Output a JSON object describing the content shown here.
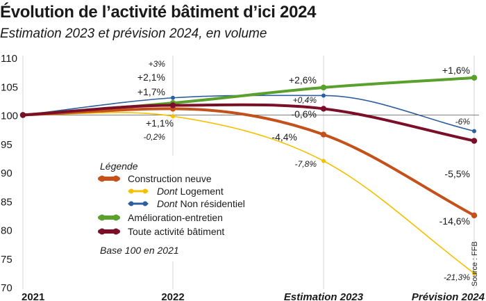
{
  "title": "Évolution de l’activité bâtiment d’ici 2024",
  "subtitle": "Estimation 2023 et prévision 2024, en volume",
  "source": "Source : FFB",
  "legend": {
    "heading": "Légende",
    "items": [
      {
        "prefix": "",
        "label": "Construction neuve"
      },
      {
        "prefix": "Dont",
        "label": " Logement"
      },
      {
        "prefix": "Dont",
        "label": " Non résidentiel"
      },
      {
        "prefix": "",
        "label": "Amélioration-entretien"
      },
      {
        "prefix": "",
        "label": "Toute activité bâtiment"
      }
    ],
    "note": "Base 100 en 2021"
  },
  "chart_data": {
    "type": "line",
    "categories": [
      "2021",
      "2022",
      "Estimation 2023",
      "Prévision 2024"
    ],
    "ylim": [
      70,
      110
    ],
    "yticks": [
      70,
      75,
      80,
      85,
      90,
      95,
      100,
      105,
      110
    ],
    "grid": "vertical lines at categories, reference line at 100",
    "legend_position": "lower-left",
    "series": [
      {
        "name": "Construction neuve",
        "color": "#c4501a",
        "width": 4,
        "values": [
          100,
          101.1,
          96.6,
          82.5
        ],
        "labels": [
          "",
          "+1,1%",
          "-4,4%",
          "-14,6%"
        ]
      },
      {
        "name": "Dont Logement",
        "color": "#f5c000",
        "width": 1.6,
        "values": [
          100,
          99.8,
          92.0,
          72.4
        ],
        "labels": [
          "",
          "-0,2%",
          "-7,8%",
          "-21,3%"
        ]
      },
      {
        "name": "Dont Non résidentiel",
        "color": "#2d5fa0",
        "width": 1.6,
        "values": [
          100,
          103.0,
          103.4,
          97.2
        ],
        "labels": [
          "",
          "+3%",
          "+0,4%",
          "-6%"
        ]
      },
      {
        "name": "Amélioration-entretien",
        "color": "#5aa02c",
        "width": 4,
        "values": [
          100,
          102.1,
          104.8,
          106.5
        ],
        "labels": [
          "",
          "+2,1%",
          "+2,6%",
          "+1,6%"
        ]
      },
      {
        "name": "Toute activité bâtiment",
        "color": "#7a0f27",
        "width": 4,
        "values": [
          100,
          101.7,
          101.1,
          95.5
        ],
        "labels": [
          "",
          "+1,7%",
          "-0,6%",
          "-5,5%"
        ]
      }
    ]
  }
}
